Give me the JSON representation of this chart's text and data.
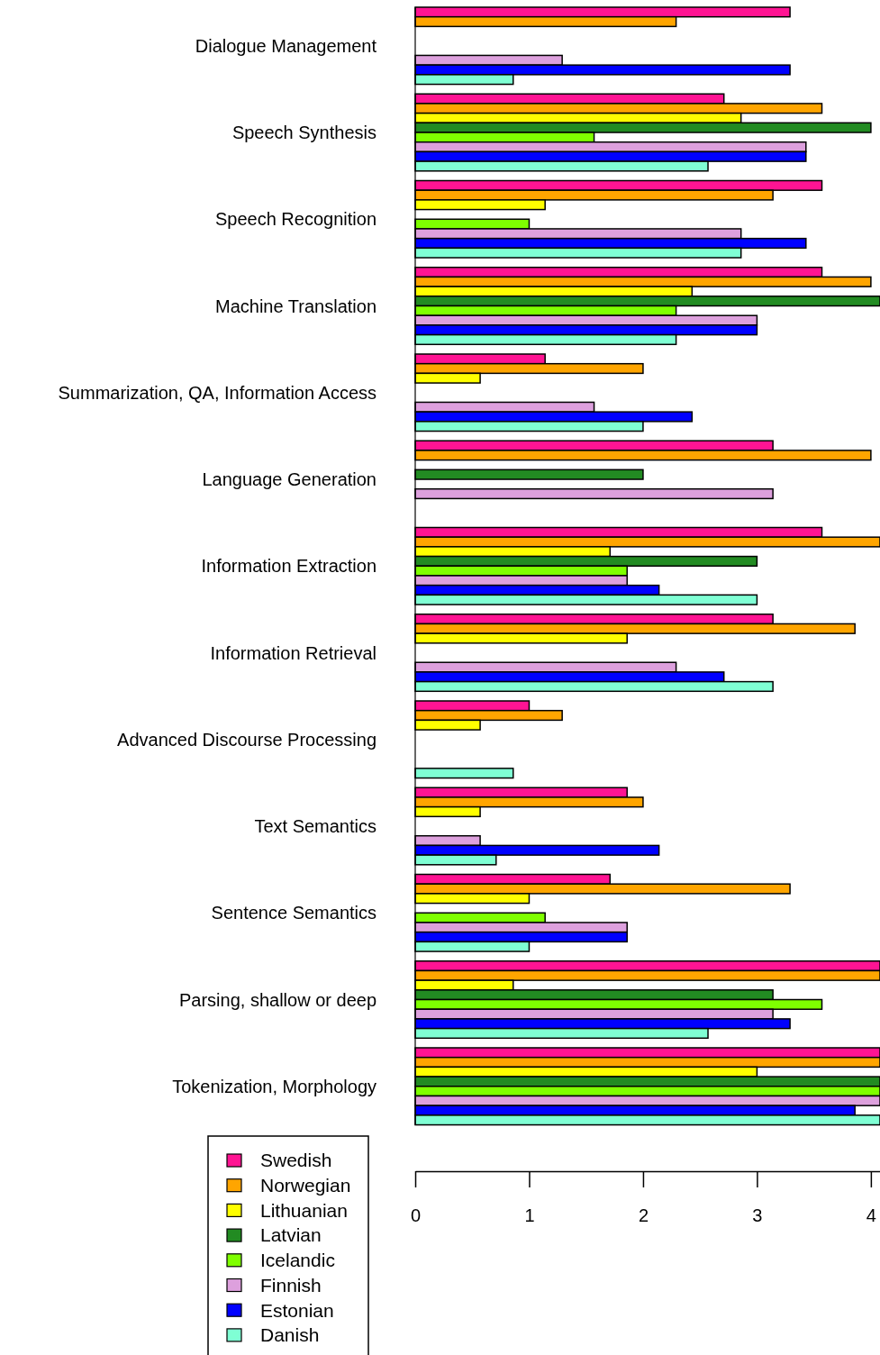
{
  "chart_data": {
    "type": "bar",
    "orientation": "horizontal",
    "legend": "bottom left",
    "xlim": [
      0,
      4.08
    ],
    "xticks": [
      0,
      1,
      2,
      3,
      4
    ],
    "categories": [
      "Dialogue Management",
      "Speech Synthesis",
      "Speech Recognition",
      "Machine Translation",
      "Summarization, QA, Information Access",
      "Language Generation",
      "Information Extraction",
      "Information Retrieval",
      "Advanced Discourse Processing",
      "Text Semantics",
      "Sentence Semantics",
      "Parsing, shallow or deep",
      "Tokenization, Morphology"
    ],
    "series": [
      {
        "name": "Swedish",
        "color": "#ff1493",
        "values": [
          3.29,
          2.71,
          3.57,
          3.57,
          1.14,
          3.14,
          3.57,
          3.14,
          1.0,
          1.86,
          1.71,
          4.08,
          4.08
        ]
      },
      {
        "name": "Norwegian",
        "color": "#ffa500",
        "values": [
          2.29,
          3.57,
          3.14,
          4.0,
          2.0,
          4.0,
          4.08,
          3.86,
          1.29,
          2.0,
          3.29,
          4.08,
          4.08
        ]
      },
      {
        "name": "Lithuanian",
        "color": "#ffff00",
        "values": [
          null,
          2.86,
          1.14,
          2.43,
          0.57,
          null,
          1.71,
          1.86,
          0.57,
          0.57,
          1.0,
          0.86,
          3.0
        ]
      },
      {
        "name": "Latvian",
        "color": "#228b22",
        "values": [
          null,
          4.0,
          null,
          4.08,
          null,
          2.0,
          3.0,
          null,
          null,
          null,
          null,
          3.14,
          4.08
        ]
      },
      {
        "name": "Icelandic",
        "color": "#7fff00",
        "values": [
          null,
          1.57,
          1.0,
          2.29,
          null,
          null,
          1.86,
          null,
          null,
          null,
          1.14,
          3.57,
          4.08
        ]
      },
      {
        "name": "Finnish",
        "color": "#dda0dd",
        "values": [
          1.29,
          3.43,
          2.86,
          3.0,
          1.57,
          3.14,
          1.86,
          2.29,
          null,
          0.57,
          1.86,
          3.14,
          4.08
        ]
      },
      {
        "name": "Estonian",
        "color": "#0000ff",
        "values": [
          3.29,
          3.43,
          3.43,
          3.0,
          2.43,
          null,
          2.14,
          2.71,
          null,
          2.14,
          1.86,
          3.29,
          3.86
        ]
      },
      {
        "name": "Danish",
        "color": "#7fffd4",
        "values": [
          0.86,
          2.57,
          2.86,
          2.29,
          2.0,
          null,
          3.0,
          3.14,
          0.86,
          0.71,
          1.0,
          2.57,
          4.08
        ]
      }
    ]
  }
}
